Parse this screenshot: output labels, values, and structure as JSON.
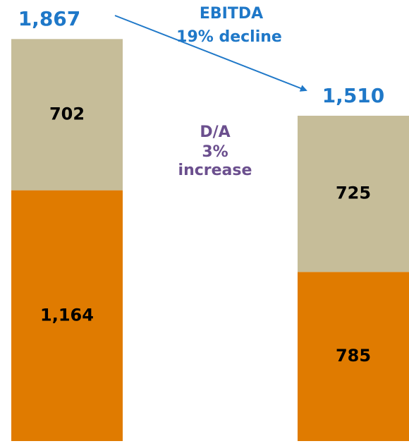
{
  "chart_data": {
    "type": "stacked-bar",
    "series": [
      {
        "color": "#e07b00",
        "values": [
          1164,
          785
        ],
        "value_labels": [
          "1,164",
          "785"
        ]
      },
      {
        "color": "#c6bd99",
        "values": [
          702,
          725
        ],
        "value_labels": [
          "702",
          "725"
        ]
      }
    ],
    "totals": [
      1867,
      1510
    ],
    "total_labels": [
      "1,867",
      "1,510"
    ],
    "annotations": [
      "EBITDA",
      "19% decline",
      "D/A",
      "3%",
      "increase"
    ]
  }
}
